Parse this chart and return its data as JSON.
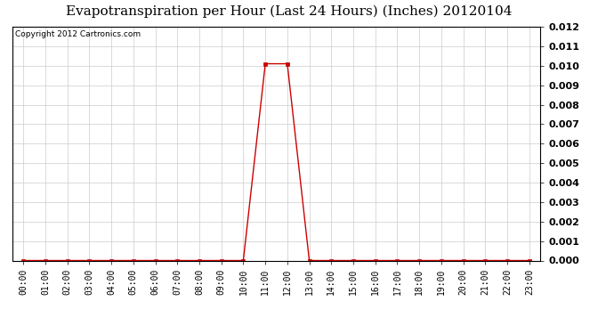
{
  "title": "Evapotranspiration per Hour (Last 24 Hours) (Inches) 20120104",
  "copyright": "Copyright 2012 Cartronics.com",
  "hours": [
    "00:00",
    "01:00",
    "02:00",
    "03:00",
    "04:00",
    "05:00",
    "06:00",
    "07:00",
    "08:00",
    "09:00",
    "10:00",
    "11:00",
    "12:00",
    "13:00",
    "14:00",
    "15:00",
    "16:00",
    "17:00",
    "18:00",
    "19:00",
    "20:00",
    "21:00",
    "22:00",
    "23:00"
  ],
  "values": [
    0.0,
    0.0,
    0.0,
    0.0,
    0.0,
    0.0,
    0.0,
    0.0,
    0.0,
    0.0,
    0.0,
    0.0101,
    0.0101,
    0.0,
    0.0,
    0.0,
    0.0,
    0.0,
    0.0,
    0.0,
    0.0,
    0.0,
    0.0,
    0.0
  ],
  "line_color": "#cc0000",
  "marker": "s",
  "marker_size": 2.5,
  "grid_color": "#cccccc",
  "background_color": "#ffffff",
  "title_fontsize": 11,
  "copyright_fontsize": 6.5,
  "tick_fontsize": 7,
  "ytick_fontsize": 8,
  "ylim": [
    0,
    0.012
  ],
  "yticks": [
    0.0,
    0.001,
    0.002,
    0.003,
    0.004,
    0.005,
    0.006,
    0.007,
    0.008,
    0.009,
    0.01,
    0.011,
    0.012
  ]
}
